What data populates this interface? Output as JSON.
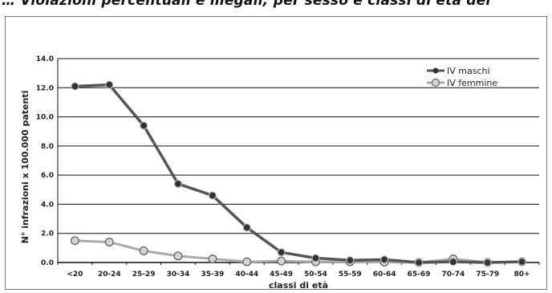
{
  "title": "… Violazioni percentuali e illegali; per sesso e classi di età dei",
  "chart_data": {
    "type": "line",
    "categories": [
      "<20",
      "20-24",
      "25-29",
      "30-34",
      "35-39",
      "40-44",
      "45-49",
      "50-54",
      "55-59",
      "60-64",
      "65-69",
      "70-74",
      "75-79",
      "80+"
    ],
    "ylabel": "N° infrazioni x 100.000 patenti",
    "xlabel": "classi di età",
    "ylim": [
      0,
      14
    ],
    "yticks": [
      "0.0",
      "2.0",
      "4.0",
      "6.0",
      "8.0",
      "10.0",
      "12.0",
      "14.0"
    ],
    "grid": true,
    "legend_position": "top-right",
    "series": [
      {
        "name": "IV maschi",
        "color": "#555555",
        "marker": "filled-circle",
        "values": [
          12.1,
          12.2,
          9.4,
          5.4,
          4.6,
          2.4,
          0.7,
          0.3,
          0.15,
          0.2,
          0.0,
          0.05,
          0.0,
          0.05
        ]
      },
      {
        "name": "IV femmine",
        "color": "#aaaaaa",
        "marker": "open-circle",
        "values": [
          1.5,
          1.4,
          0.8,
          0.45,
          0.25,
          0.05,
          0.1,
          0.05,
          0.05,
          0.02,
          0.0,
          0.25,
          0.0,
          0.05
        ]
      }
    ]
  }
}
